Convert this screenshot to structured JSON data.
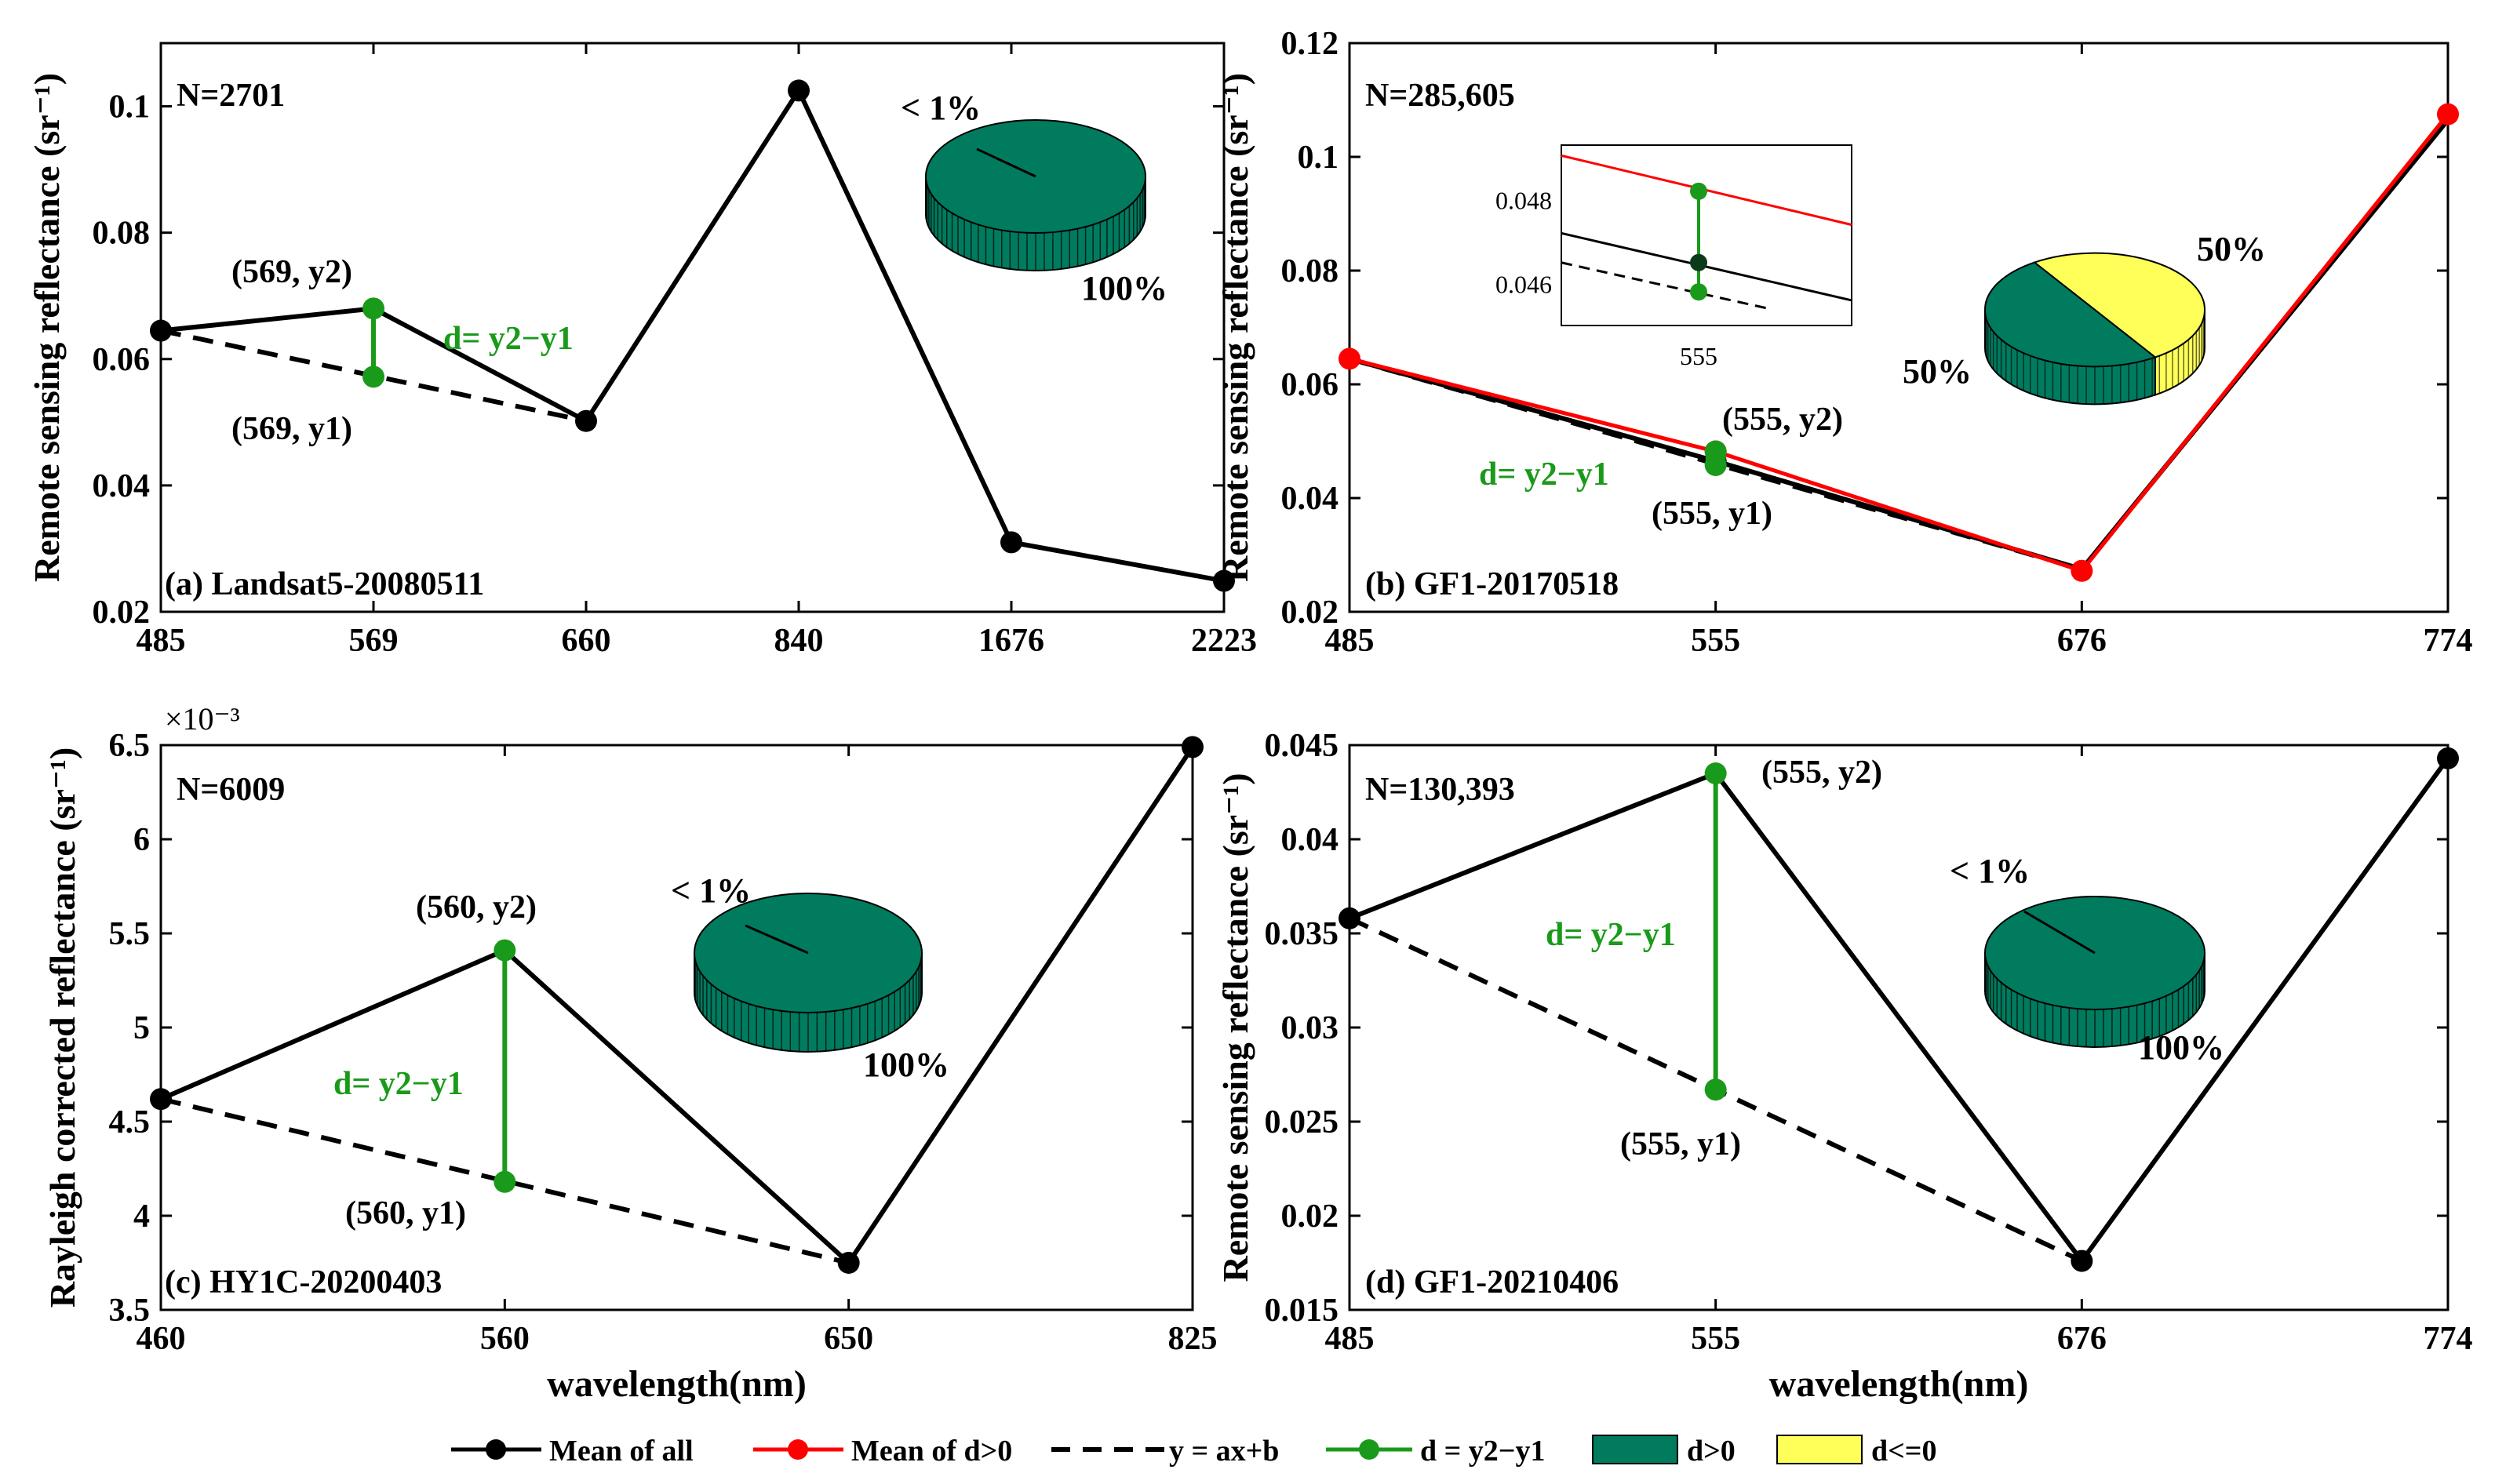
{
  "colors": {
    "mean_all": "#000000",
    "mean_pos": "#ff0000",
    "fit": "#000000",
    "diff": "#1a9a1a",
    "pos": "#007b5e",
    "neg": "#ffff5a"
  },
  "legend": [
    {
      "label": "Mean of all",
      "kind": "line-marker",
      "color": "#000000"
    },
    {
      "label": "Mean of d>0",
      "kind": "line-marker",
      "color": "#ff0000"
    },
    {
      "label": "y = ax+b",
      "kind": "dashed",
      "color": "#000000"
    },
    {
      "label": "d = y2−y1",
      "kind": "line-marker",
      "color": "#1a9a1a"
    },
    {
      "label": "d>0",
      "kind": "box",
      "color": "#007b5e"
    },
    {
      "label": "d<=0",
      "kind": "box",
      "color": "#ffff5a"
    }
  ],
  "chart_data": [
    {
      "type": "line",
      "panel": "a",
      "caption": "(a) Landsat5-20080511",
      "n_label": "N=2701",
      "ylabel": "Remote sensing reflectance (sr⁻¹)",
      "xlabel": "",
      "categories": [
        "485",
        "569",
        "660",
        "840",
        "1676",
        "2223"
      ],
      "ylim": [
        0.02,
        0.11
      ],
      "yticks": [
        0.02,
        0.04,
        0.06,
        0.08,
        0.1
      ],
      "ytick_labels": [
        "0.02",
        "0.04",
        "0.06",
        "0.08",
        "0.1"
      ],
      "series": [
        {
          "name": "Mean of all",
          "values": [
            0.0645,
            0.068,
            0.0502,
            0.1025,
            0.031,
            0.0249
          ]
        }
      ],
      "fit": {
        "from_index": 0,
        "to_index": 2
      },
      "diff": {
        "index": 1,
        "y2": 0.068,
        "y1": 0.0572
      },
      "diff_labels": {
        "top": "(569, y2)",
        "bottom": "(569, y1)",
        "d": "d= y2−y1"
      },
      "pie": {
        "pos_pct": 100,
        "neg_pct": 0,
        "labels": [
          "< 1%",
          "100%"
        ]
      }
    },
    {
      "type": "line",
      "panel": "b",
      "caption": "(b) GF1-20170518",
      "n_label": "N=285,605",
      "ylabel": "Remote sensing reflectance (sr⁻¹)",
      "xlabel": "",
      "categories": [
        "485",
        "555",
        "676",
        "774"
      ],
      "ylim": [
        0.02,
        0.12
      ],
      "yticks": [
        0.02,
        0.04,
        0.06,
        0.08,
        0.1,
        0.12
      ],
      "ytick_labels": [
        "0.02",
        "0.04",
        "0.06",
        "0.08",
        "0.1",
        "0.12"
      ],
      "series": [
        {
          "name": "Mean of all",
          "values": [
            0.0645,
            0.0465,
            0.0275,
            0.1065
          ]
        },
        {
          "name": "Mean of d>0",
          "values": [
            0.0645,
            0.0482,
            0.0272,
            0.1075
          ]
        }
      ],
      "fit": {
        "from_index": 0,
        "to_index": 2
      },
      "diff": {
        "index": 1,
        "y2": 0.0482,
        "y1": 0.0458
      },
      "diff_labels": {
        "top": "(555, y2)",
        "bottom": "(555, y1)",
        "d": "d= y2−y1"
      },
      "inset": {
        "tick_labels": [
          "0.048",
          "0.046"
        ],
        "yticks": [
          0.048,
          0.046
        ],
        "ylim": [
          0.045,
          0.0493
        ],
        "x_label": "555",
        "y2": 0.0482,
        "y_all": 0.0465,
        "y1": 0.0458
      },
      "pie": {
        "pos_pct": 50,
        "neg_pct": 50,
        "labels": [
          "50%",
          "50%"
        ]
      }
    },
    {
      "type": "line",
      "panel": "c",
      "caption": "(c) HY1C-20200403",
      "n_label": "N=6009",
      "ylabel": "Rayleigh corrected reflectance (sr⁻¹)",
      "xlabel": "wavelength(nm)",
      "multiplier": "×10⁻³",
      "categories": [
        "460",
        "560",
        "650",
        "825"
      ],
      "ylim": [
        3.5,
        6.5
      ],
      "yticks": [
        3.5,
        4,
        4.5,
        5,
        5.5,
        6,
        6.5
      ],
      "ytick_labels": [
        "3.5",
        "4",
        "4.5",
        "5",
        "5.5",
        "6",
        "6.5"
      ],
      "series": [
        {
          "name": "Mean of all",
          "values": [
            4.62,
            5.41,
            3.75,
            6.49
          ]
        }
      ],
      "fit": {
        "from_index": 0,
        "to_index": 2
      },
      "diff": {
        "index": 1,
        "y2": 5.41,
        "y1": 4.18
      },
      "diff_labels": {
        "top": "(560, y2)",
        "bottom": "(560, y1)",
        "d": "d= y2−y1"
      },
      "pie": {
        "pos_pct": 100,
        "neg_pct": 0,
        "labels": [
          "< 1%",
          "100%"
        ]
      }
    },
    {
      "type": "line",
      "panel": "d",
      "caption": "(d) GF1-20210406",
      "n_label": "N=130,393",
      "ylabel": "Remote sensing reflectance (sr⁻¹)",
      "xlabel": "wavelength(nm)",
      "categories": [
        "485",
        "555",
        "676",
        "774"
      ],
      "ylim": [
        0.015,
        0.045
      ],
      "yticks": [
        0.015,
        0.02,
        0.025,
        0.03,
        0.035,
        0.04,
        0.045
      ],
      "ytick_labels": [
        "0.015",
        "0.02",
        "0.025",
        "0.03",
        "0.035",
        "0.04",
        "0.045"
      ],
      "series": [
        {
          "name": "Mean of all",
          "values": [
            0.0358,
            0.0435,
            0.0176,
            0.0443
          ]
        }
      ],
      "fit": {
        "from_index": 0,
        "to_index": 2
      },
      "diff": {
        "index": 1,
        "y2": 0.0435,
        "y1": 0.0267
      },
      "diff_labels": {
        "top": "(555, y2)",
        "bottom": "(555, y1)",
        "d": "d= y2−y1"
      },
      "pie": {
        "pos_pct": 100,
        "neg_pct": 0,
        "labels": [
          "< 1%",
          "100%"
        ]
      }
    }
  ]
}
